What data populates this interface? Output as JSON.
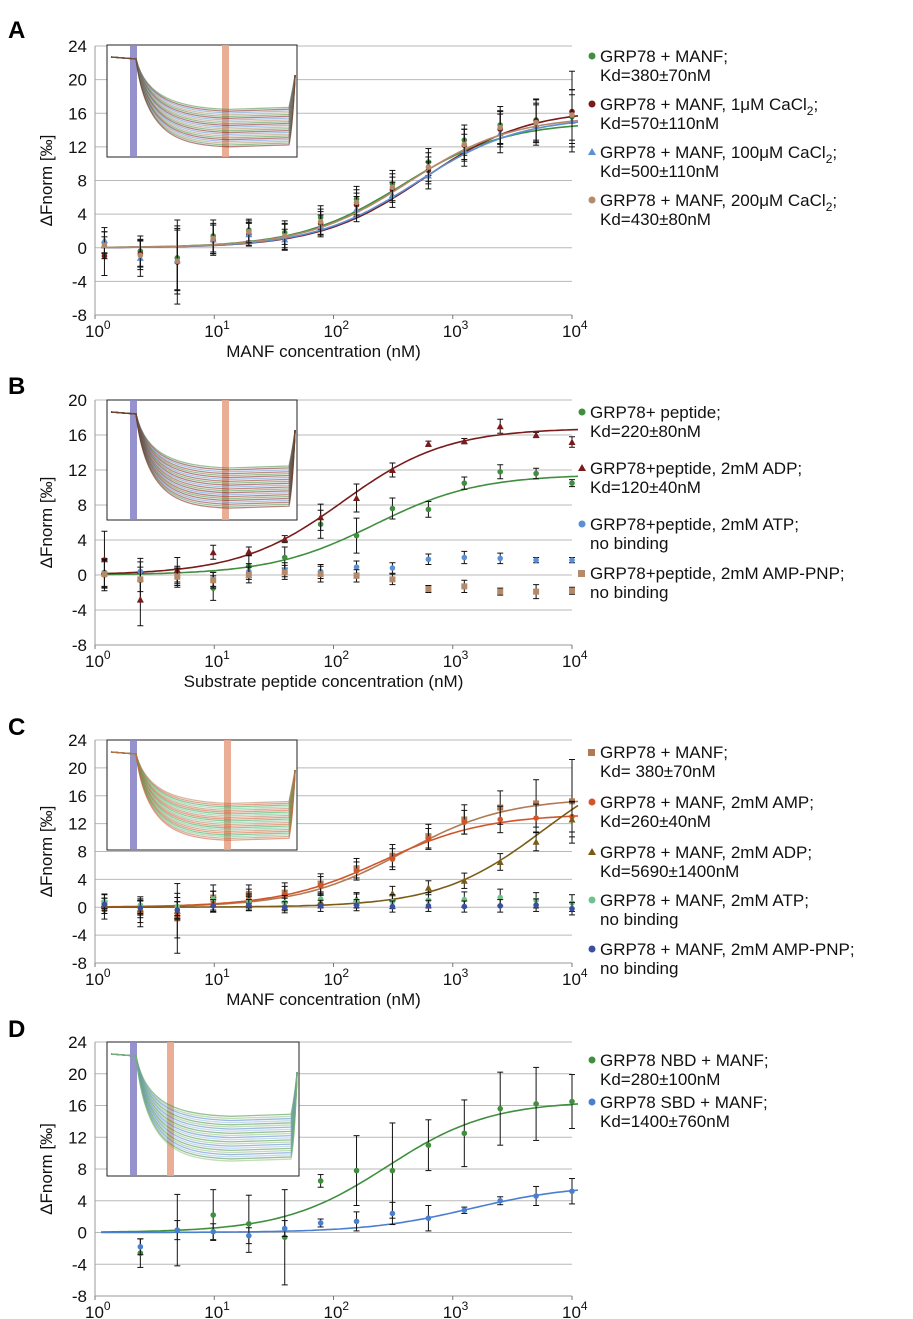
{
  "chart_data": [
    {
      "panel": "A",
      "type": "scatter",
      "xscale": "log",
      "xlim": [
        1,
        10000
      ],
      "ylim": [
        -8,
        24
      ],
      "yticks": [
        24,
        20,
        16,
        12,
        8,
        4,
        0,
        -4,
        -8
      ],
      "xtick_labels": [
        "10",
        "10",
        "10",
        "10",
        "10"
      ],
      "xtick_exps": [
        "0",
        "1",
        "2",
        "3",
        "4"
      ],
      "xlabel": "MANF concentration (nM)",
      "ylabel": "ΔFnorm [‰]",
      "x": [
        1.2,
        2.4,
        4.9,
        9.8,
        19.5,
        39,
        78,
        156,
        312,
        625,
        1250,
        2500,
        5000,
        10000
      ],
      "series": [
        {
          "color": "#3f8f3f",
          "marker": "circle",
          "values": [
            0.6,
            -0.4,
            -1.2,
            1.4,
            2.1,
            1.8,
            3.6,
            5.8,
            7.6,
            10.2,
            12.8,
            14.6,
            15.2,
            15.6
          ],
          "errors": [
            1.3,
            1.8,
            3.8,
            1.9,
            1.3,
            1.4,
            1.4,
            1.5,
            1.6,
            1.6,
            1.8,
            2.2,
            2.4,
            3.2
          ],
          "fit": {
            "top": 15.0,
            "kd": 380
          },
          "legend": [
            "GRP78 + MANF;",
            "Kd=380±70nM"
          ]
        },
        {
          "color": "#7a1b1b",
          "marker": "circle",
          "values": [
            -1.0,
            -0.7,
            -1.7,
            0.9,
            1.6,
            1.3,
            2.9,
            5.1,
            6.9,
            9.2,
            12.2,
            14.1,
            15.1,
            16.2
          ],
          "errors": [
            2.3,
            1.6,
            5.0,
            1.8,
            1.3,
            1.6,
            1.4,
            1.4,
            1.5,
            1.6,
            1.9,
            2.1,
            2.6,
            4.8
          ],
          "fit": {
            "top": 16.5,
            "kd": 570
          },
          "legend": [
            "GRP78 + MANF, 1μM CaCl2;",
            "Kd=570±110nM"
          ]
        },
        {
          "color": "#5b8fd6",
          "marker": "triangle",
          "values": [
            0.9,
            -1.2,
            -1.5,
            1.0,
            1.6,
            1.0,
            2.6,
            4.6,
            6.3,
            8.6,
            11.6,
            13.6,
            14.6,
            15.1
          ],
          "errors": [
            1.5,
            2.2,
            3.6,
            1.7,
            1.4,
            1.2,
            1.3,
            1.5,
            1.5,
            1.6,
            1.9,
            2.3,
            2.4,
            3.1
          ],
          "fit": {
            "top": 15.6,
            "kd": 500
          },
          "legend": [
            "GRP78 + MANF, 100μM CaCl2;",
            "Kd=500±110nM"
          ]
        },
        {
          "color": "#b58a6a",
          "marker": "circle",
          "values": [
            0.3,
            -0.9,
            -1.6,
            1.1,
            1.9,
            1.4,
            3.1,
            5.4,
            7.2,
            9.6,
            12.3,
            14.3,
            14.9,
            15.8
          ],
          "errors": [
            1.6,
            1.7,
            3.9,
            1.8,
            1.3,
            1.4,
            1.5,
            1.5,
            1.6,
            1.7,
            1.8,
            2.0,
            2.3,
            3.0
          ],
          "fit": {
            "top": 15.7,
            "kd": 430
          },
          "legend": [
            "GRP78 + MANF, 200μM CaCl2;",
            "Kd=430±80nM"
          ]
        }
      ]
    },
    {
      "panel": "B",
      "type": "scatter",
      "xscale": "log",
      "xlim": [
        1,
        10000
      ],
      "ylim": [
        -8,
        20
      ],
      "yticks": [
        20,
        16,
        12,
        8,
        4,
        0,
        -4,
        -8
      ],
      "xtick_labels": [
        "10",
        "10",
        "10",
        "10",
        "10"
      ],
      "xtick_exps": [
        "0",
        "1",
        "2",
        "3",
        "4"
      ],
      "xlabel": "Substrate   peptide concentration (nM)",
      "ylabel": "ΔFnorm [‰]",
      "x": [
        1.2,
        2.4,
        4.9,
        9.8,
        19.5,
        39,
        78,
        156,
        312,
        625,
        1250,
        2500,
        5000,
        10000
      ],
      "series": [
        {
          "color": "#3f8f3f",
          "marker": "circle",
          "values": [
            0.3,
            -0.6,
            -0.2,
            -1.5,
            1.0,
            2.0,
            5.8,
            4.5,
            7.6,
            7.5,
            10.5,
            11.8,
            11.6,
            10.5
          ],
          "errors": [
            1.6,
            2.5,
            1.2,
            1.4,
            1.3,
            1.2,
            1.6,
            2.0,
            1.2,
            0.9,
            0.7,
            0.8,
            0.6,
            0.4
          ],
          "fit": {
            "top": 11.5,
            "kd": 220
          },
          "legend": [
            "GRP78+ peptide;",
            "Kd=220±80nM"
          ]
        },
        {
          "color": "#7a1b1b",
          "marker": "triangle",
          "values": [
            1.8,
            -2.8,
            0.6,
            2.6,
            2.7,
            4.1,
            6.6,
            8.8,
            12.0,
            15.0,
            15.3,
            17.0,
            16.0,
            15.2
          ],
          "errors": [
            3.2,
            3.0,
            1.4,
            0.8,
            0.5,
            0.4,
            1.5,
            1.6,
            0.8,
            0.3,
            0.3,
            0.8,
            0.3,
            0.6
          ],
          "fit": {
            "top": 16.8,
            "kd": 120
          },
          "legend": [
            "GRP78+peptide, 2mM ADP;",
            "Kd=120±40nM"
          ]
        },
        {
          "color": "#5b8fd6",
          "marker": "circle",
          "values": [
            0.0,
            0.4,
            -0.1,
            -0.5,
            0.4,
            0.6,
            0.4,
            0.9,
            0.8,
            1.8,
            2.0,
            1.9,
            1.7,
            1.7
          ],
          "errors": [
            1.8,
            1.1,
            0.9,
            0.8,
            0.9,
            0.8,
            0.8,
            0.7,
            0.6,
            0.6,
            0.7,
            0.6,
            0.3,
            0.3
          ],
          "fit": null,
          "legend": [
            "GRP78+peptide, 2mM  ATP;",
            "no binding"
          ]
        },
        {
          "color": "#b58a6a",
          "marker": "square",
          "values": [
            0.1,
            -0.5,
            -0.2,
            -0.6,
            0.0,
            0.3,
            0.1,
            -0.1,
            -0.5,
            -1.6,
            -1.3,
            -1.9,
            -1.9,
            -1.8
          ],
          "errors": [
            1.6,
            1.4,
            1.0,
            0.9,
            0.9,
            0.8,
            0.9,
            0.7,
            0.6,
            0.4,
            0.7,
            0.4,
            0.8,
            0.4
          ],
          "fit": null,
          "legend": [
            "GRP78+peptide, 2mM  AMP-PNP;",
            "no binding"
          ]
        }
      ]
    },
    {
      "panel": "C",
      "type": "scatter",
      "xscale": "log",
      "xlim": [
        1,
        10000
      ],
      "ylim": [
        -8,
        24
      ],
      "yticks": [
        24,
        20,
        16,
        12,
        8,
        4,
        0,
        -4,
        -8
      ],
      "xtick_labels": [
        "10",
        "10",
        "10",
        "10",
        "10"
      ],
      "xtick_exps": [
        "0",
        "1",
        "2",
        "3",
        "4"
      ],
      "xlabel": "MANF concentration (nM)",
      "ylabel": "ΔFnorm [‰]",
      "x": [
        1.2,
        2.4,
        4.9,
        9.8,
        19.5,
        39,
        78,
        156,
        312,
        625,
        1250,
        2500,
        5000,
        10000
      ],
      "series": [
        {
          "color": "#b07a55",
          "marker": "square",
          "values": [
            0.5,
            -0.8,
            -1.6,
            1.4,
            1.9,
            2.1,
            3.4,
            5.6,
            7.4,
            10.2,
            12.6,
            14.3,
            14.9,
            15.2
          ],
          "errors": [
            1.4,
            2.0,
            5.0,
            1.8,
            1.3,
            1.4,
            1.4,
            1.4,
            1.6,
            1.7,
            2.1,
            2.4,
            3.4,
            6.0
          ],
          "fit": {
            "top": 15.7,
            "kd": 380
          },
          "legend": [
            "GRP78 + MANF;",
            "Kd= 380±70nM"
          ]
        },
        {
          "color": "#d2552a",
          "marker": "circle",
          "values": [
            -0.4,
            -0.6,
            -1.2,
            0.8,
            1.4,
            1.8,
            3.1,
            5.2,
            6.9,
            9.8,
            12.2,
            12.6,
            12.8,
            13.0
          ],
          "errors": [
            1.3,
            1.6,
            3.2,
            1.5,
            1.2,
            1.2,
            1.3,
            1.3,
            1.5,
            1.5,
            1.7,
            1.9,
            2.0,
            2.2
          ],
          "fit": {
            "top": 13.4,
            "kd": 260
          },
          "legend": [
            "GRP78 + MANF, 2mM AMP;",
            "Kd=260±40nM"
          ]
        },
        {
          "color": "#7a5c14",
          "marker": "triangle",
          "values": [
            0.2,
            -0.3,
            -0.5,
            0.4,
            0.6,
            0.4,
            0.8,
            1.2,
            2.0,
            2.8,
            3.8,
            6.5,
            9.4,
            12.6
          ],
          "errors": [
            1.1,
            1.2,
            1.3,
            1.0,
            1.0,
            0.9,
            0.9,
            0.9,
            1.0,
            1.0,
            1.1,
            1.2,
            1.3,
            2.5
          ],
          "fit": {
            "top": 22.0,
            "kd": 5690
          },
          "legend": [
            "GRP78 + MANF, 2mM ADP;",
            "Kd=5690±1400nM"
          ]
        },
        {
          "color": "#6fc28a",
          "marker": "circle",
          "values": [
            0.8,
            0.3,
            0.1,
            1.2,
            0.9,
            0.7,
            1.2,
            0.9,
            0.8,
            1.0,
            1.1,
            1.4,
            1.0,
            0.6
          ],
          "errors": [
            1.0,
            1.2,
            1.3,
            1.1,
            1.0,
            1.0,
            1.0,
            1.0,
            1.0,
            1.1,
            1.1,
            1.2,
            1.1,
            1.2
          ],
          "fit": null,
          "legend": [
            "GRP78 + MANF, 2mM ATP;",
            "no binding"
          ]
        },
        {
          "color": "#3a4fa0",
          "marker": "circle",
          "values": [
            0.4,
            -0.1,
            -0.4,
            0.2,
            0.3,
            0.0,
            0.2,
            0.3,
            0.1,
            0.2,
            0.1,
            0.2,
            0.3,
            -0.2
          ],
          "errors": [
            0.9,
            1.0,
            1.2,
            0.9,
            0.8,
            0.8,
            0.8,
            0.8,
            0.8,
            0.8,
            0.8,
            0.9,
            0.9,
            0.9
          ],
          "fit": null,
          "legend": [
            "GRP78 + MANF, 2mM AMP-PNP;",
            "no binding"
          ]
        }
      ]
    },
    {
      "panel": "D",
      "type": "scatter",
      "xscale": "log",
      "xlim": [
        1,
        10000
      ],
      "ylim": [
        -8,
        24
      ],
      "yticks": [
        24,
        20,
        16,
        12,
        8,
        4,
        0,
        -4,
        -8
      ],
      "xtick_labels": [
        "10",
        "10",
        "10",
        "10",
        "10"
      ],
      "xtick_exps": [
        "0",
        "1",
        "2",
        "3",
        "4"
      ],
      "xlabel": "MANF concentration (nM)",
      "ylabel": "ΔFnorm [‰]",
      "x": [
        2.4,
        4.9,
        9.8,
        19.5,
        39,
        78,
        156,
        312,
        625,
        1250,
        2500,
        5000,
        10000
      ],
      "series": [
        {
          "color": "#3f8f3f",
          "marker": "circle",
          "values": [
            -2.6,
            0.3,
            2.2,
            1.1,
            -0.6,
            6.5,
            7.8,
            7.8,
            11.0,
            12.5,
            15.6,
            16.2,
            16.5
          ],
          "errors": [
            1.8,
            4.5,
            3.2,
            3.6,
            6.0,
            0.8,
            4.4,
            6.0,
            3.2,
            4.2,
            4.6,
            4.6,
            3.4
          ],
          "fit": {
            "top": 16.6,
            "kd": 280
          },
          "legend": [
            "GRP78 NBD + MANF;",
            "Kd=280±100nM"
          ]
        },
        {
          "color": "#4a7fd0",
          "marker": "circle",
          "values": [
            -1.8,
            0.3,
            0.1,
            -0.4,
            0.5,
            1.2,
            1.4,
            2.4,
            1.8,
            2.8,
            4.0,
            4.6,
            5.2
          ],
          "errors": [
            1.0,
            1.2,
            1.0,
            1.0,
            1.0,
            0.5,
            1.2,
            1.4,
            1.6,
            0.4,
            0.5,
            1.2,
            1.6
          ],
          "fit": {
            "top": 6.0,
            "kd": 1400
          },
          "legend": [
            "GRP78 SBD + MANF;",
            "Kd=1400±760nM"
          ]
        }
      ]
    }
  ]
}
